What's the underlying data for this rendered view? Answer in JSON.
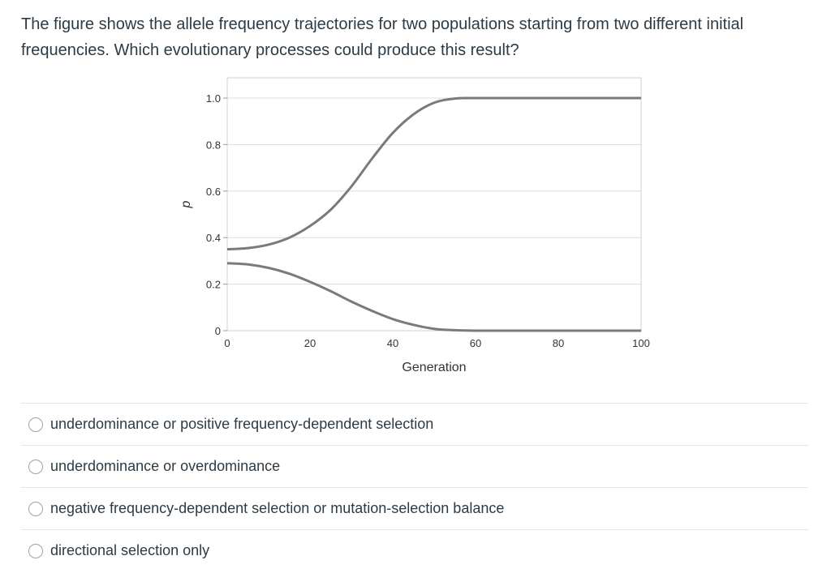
{
  "question": {
    "text": "The figure shows the allele frequency trajectories for two populations starting from two different initial frequencies. Which evolutionary processes could produce this result?"
  },
  "chart_data": {
    "type": "line",
    "xlabel": "Generation",
    "ylabel": "p",
    "xlim": [
      0,
      100
    ],
    "ylim": [
      0,
      1.0
    ],
    "x_ticks": [
      "0",
      "20",
      "40",
      "60",
      "80",
      "100"
    ],
    "y_ticks": [
      "0",
      "0.2",
      "0.4",
      "0.6",
      "0.8",
      "1.0"
    ],
    "grid": true,
    "series": [
      {
        "color": "#7a7a7a",
        "x": [
          0,
          5,
          10,
          15,
          20,
          25,
          30,
          35,
          40,
          45,
          50,
          55,
          60,
          70,
          80,
          90,
          100
        ],
        "y": [
          0.35,
          0.355,
          0.37,
          0.4,
          0.45,
          0.52,
          0.62,
          0.74,
          0.85,
          0.93,
          0.98,
          0.998,
          1.0,
          1.0,
          1.0,
          1.0,
          1.0
        ]
      },
      {
        "color": "#7a7a7a",
        "x": [
          0,
          5,
          10,
          15,
          20,
          25,
          30,
          35,
          40,
          45,
          50,
          55,
          60,
          70,
          80,
          90,
          100
        ],
        "y": [
          0.29,
          0.285,
          0.27,
          0.245,
          0.21,
          0.17,
          0.125,
          0.085,
          0.05,
          0.025,
          0.008,
          0.002,
          0.0,
          0.0,
          0.0,
          0.0,
          0.0
        ]
      }
    ]
  },
  "answers": [
    {
      "label": "underdominance or positive frequency-dependent selection"
    },
    {
      "label": "underdominance or overdominance"
    },
    {
      "label": "negative frequency-dependent selection or mutation-selection balance"
    },
    {
      "label": "directional selection only"
    }
  ]
}
